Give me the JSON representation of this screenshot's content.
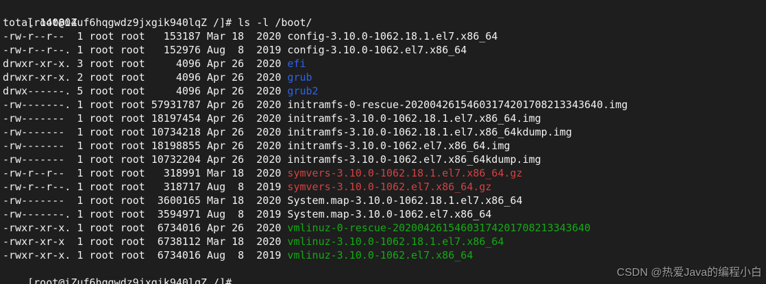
{
  "terminal": {
    "colors": {
      "background": "#1e1e1e",
      "foreground": "#f2f2f2",
      "file": "#f2f2f2",
      "directory": "#2e63e8",
      "archive": "#d54141",
      "executable": "#14aa14",
      "watermark": "#9e9e9e"
    },
    "prompt": "[root@iZuf6hqgwdz9jxgik940lqZ /]# ",
    "command": "ls -l /boot/",
    "total_line": "total 140804",
    "files": [
      {
        "meta": "-rw-r--r--  1 root root   153187 Mar 18  2020 ",
        "name": "config-3.10.0-1062.18.1.el7.x86_64",
        "color_role": "file"
      },
      {
        "meta": "-rw-r--r--. 1 root root   152976 Aug  8  2019 ",
        "name": "config-3.10.0-1062.el7.x86_64",
        "color_role": "file"
      },
      {
        "meta": "drwxr-xr-x. 3 root root     4096 Apr 26  2020 ",
        "name": "efi",
        "color_role": "directory"
      },
      {
        "meta": "drwxr-xr-x. 2 root root     4096 Apr 26  2020 ",
        "name": "grub",
        "color_role": "directory"
      },
      {
        "meta": "drwx------. 5 root root     4096 Apr 26  2020 ",
        "name": "grub2",
        "color_role": "directory"
      },
      {
        "meta": "-rw-------. 1 root root 57931787 Apr 26  2020 ",
        "name": "initramfs-0-rescue-20200426154603174201708213343640.img",
        "color_role": "file"
      },
      {
        "meta": "-rw-------  1 root root 18197454 Apr 26  2020 ",
        "name": "initramfs-3.10.0-1062.18.1.el7.x86_64.img",
        "color_role": "file"
      },
      {
        "meta": "-rw-------  1 root root 10734218 Apr 26  2020 ",
        "name": "initramfs-3.10.0-1062.18.1.el7.x86_64kdump.img",
        "color_role": "file"
      },
      {
        "meta": "-rw-------  1 root root 18198855 Apr 26  2020 ",
        "name": "initramfs-3.10.0-1062.el7.x86_64.img",
        "color_role": "file"
      },
      {
        "meta": "-rw-------  1 root root 10732204 Apr 26  2020 ",
        "name": "initramfs-3.10.0-1062.el7.x86_64kdump.img",
        "color_role": "file"
      },
      {
        "meta": "-rw-r--r--  1 root root   318991 Mar 18  2020 ",
        "name": "symvers-3.10.0-1062.18.1.el7.x86_64.gz",
        "color_role": "archive"
      },
      {
        "meta": "-rw-r--r--. 1 root root   318717 Aug  8  2019 ",
        "name": "symvers-3.10.0-1062.el7.x86_64.gz",
        "color_role": "archive"
      },
      {
        "meta": "-rw-------  1 root root  3600165 Mar 18  2020 ",
        "name": "System.map-3.10.0-1062.18.1.el7.x86_64",
        "color_role": "file"
      },
      {
        "meta": "-rw-------. 1 root root  3594971 Aug  8  2019 ",
        "name": "System.map-3.10.0-1062.el7.x86_64",
        "color_role": "file"
      },
      {
        "meta": "-rwxr-xr-x. 1 root root  6734016 Apr 26  2020 ",
        "name": "vmlinuz-0-rescue-20200426154603174201708213343640",
        "color_role": "executable"
      },
      {
        "meta": "-rwxr-xr-x  1 root root  6738112 Mar 18  2020 ",
        "name": "vmlinuz-3.10.0-1062.18.1.el7.x86_64",
        "color_role": "executable"
      },
      {
        "meta": "-rwxr-xr-x. 1 root root  6734016 Aug  8  2019 ",
        "name": "vmlinuz-3.10.0-1062.el7.x86_64",
        "color_role": "executable"
      }
    ],
    "trailing_prompt": "[root@iZuf6hqgwdz9jxgik940lqZ /]# ",
    "watermark": "CSDN @热爱Java的编程小白"
  }
}
